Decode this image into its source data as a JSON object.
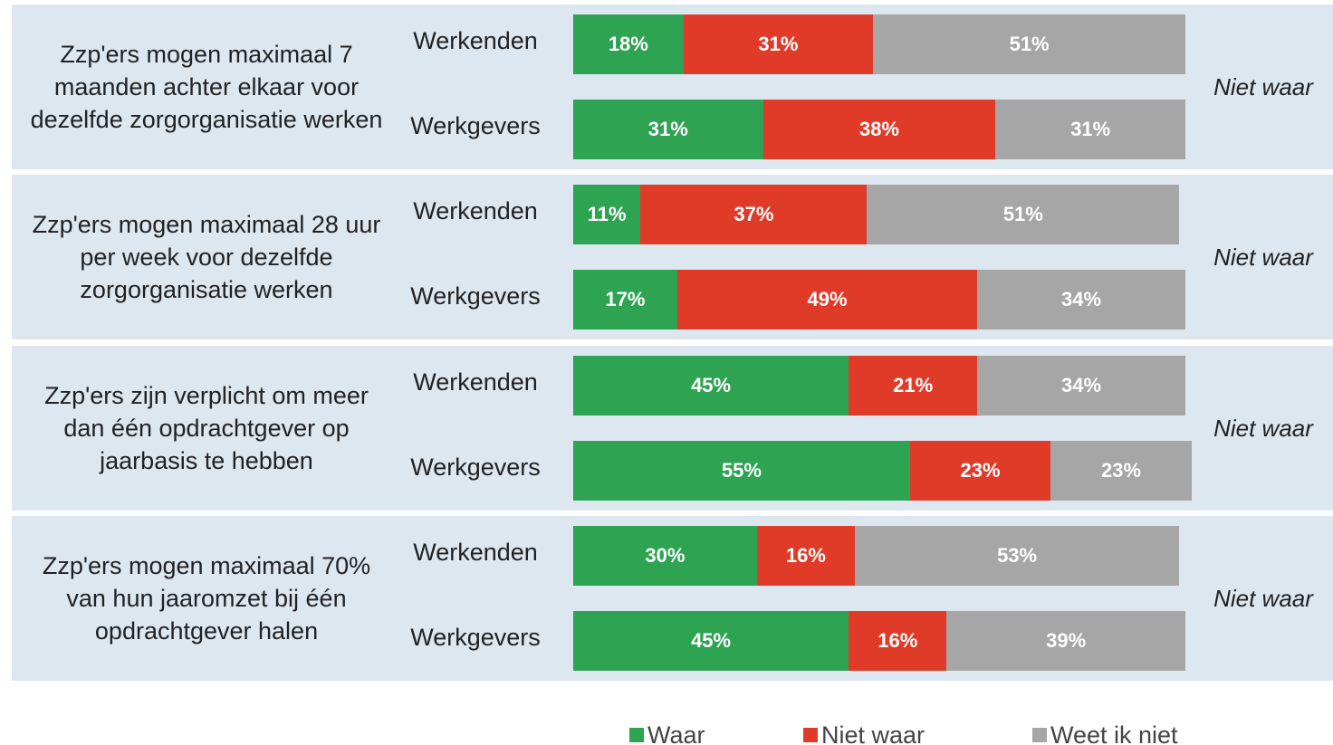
{
  "chart_data": {
    "type": "bar",
    "orientation": "horizontal",
    "stacked": true,
    "groups": [
      {
        "label": "Zzp'ers mogen maximaal 7 maanden achter elkaar voor dezelfde zorgorganisatie werken",
        "answer": "Niet waar"
      },
      {
        "label": "Zzp'ers mogen maximaal 28 uur per week voor dezelfde zorgorganisatie werken",
        "answer": "Niet waar"
      },
      {
        "label": "Zzp'ers zijn verplicht om meer dan één opdrachtgever op jaarbasis te hebben",
        "answer": "Niet waar"
      },
      {
        "label": "Zzp'ers mogen maximaal 70% van hun jaaromzet bij één opdrachtgever halen",
        "answer": "Niet waar"
      }
    ],
    "categories": [
      "Werkenden",
      "Werkgevers",
      "Werkenden",
      "Werkgevers",
      "Werkenden",
      "Werkgevers",
      "Werkenden",
      "Werkgevers"
    ],
    "series": [
      {
        "name": "Waar",
        "color": "#2ea352",
        "values": [
          18,
          31,
          11,
          17,
          45,
          55,
          30,
          45
        ],
        "value_labels": [
          "18%",
          "31%",
          "11%",
          "17%",
          "45%",
          "55%",
          "30%",
          "45%"
        ]
      },
      {
        "name": "Niet waar",
        "color": "#e03a28",
        "values": [
          31,
          38,
          37,
          49,
          21,
          23,
          16,
          16
        ],
        "value_labels": [
          "31%",
          "38%",
          "37%",
          "49%",
          "21%",
          "23%",
          "16%",
          "16%"
        ]
      },
      {
        "name": "Weet ik niet",
        "color": "#a6a6a6",
        "values": [
          51,
          31,
          51,
          34,
          34,
          23,
          53,
          39
        ],
        "value_labels": [
          "51%",
          "31%",
          "51%",
          "34%",
          "34%",
          "23%",
          "53%",
          "39%"
        ]
      }
    ],
    "xlim": [
      0,
      100
    ],
    "legend": "bottom"
  }
}
